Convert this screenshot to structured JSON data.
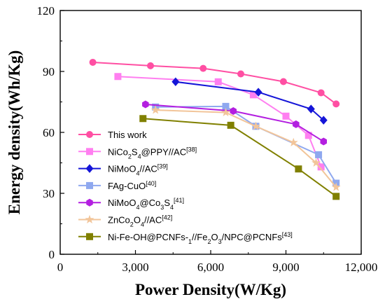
{
  "chart_data": {
    "type": "line",
    "xlabel": "Power Density(W/Kg)",
    "ylabel": "Energy density(Wh/Kg)",
    "xlim": [
      0,
      12000
    ],
    "ylim": [
      0,
      120
    ],
    "x_ticks": [
      "0",
      "3,000",
      "6,000",
      "9,000",
      "12,000"
    ],
    "y_ticks": [
      "0",
      "30",
      "60",
      "90",
      "120"
    ],
    "legend_position": "bottom-left",
    "series": [
      {
        "name": "This work",
        "color": "#ff4fa3",
        "marker": "circle",
        "x": [
          1300,
          3600,
          5700,
          7200,
          8900,
          10400,
          11000
        ],
        "y": [
          94.5,
          92.8,
          91.5,
          88.8,
          85.0,
          79.5,
          74.0
        ]
      },
      {
        "name": "NiCo2S4@PPY//AC",
        "ref": "[38]",
        "color": "#ff7ff0",
        "marker": "square",
        "x": [
          2300,
          6300,
          7700,
          9000,
          9900,
          10400
        ],
        "y": [
          87.5,
          84.9,
          78.5,
          68.0,
          58.5,
          43.0
        ]
      },
      {
        "name": "NiMoO4//AC",
        "ref": "[39]",
        "color": "#1515d8",
        "marker": "diamond",
        "x": [
          4600,
          7900,
          10000,
          10500
        ],
        "y": [
          84.9,
          79.8,
          71.5,
          66.0
        ]
      },
      {
        "name": "FAg-CuO",
        "ref": "[40]",
        "color": "#8fa8ef",
        "marker": "square",
        "x": [
          3800,
          6600,
          7800,
          10300,
          11000
        ],
        "y": [
          72.5,
          72.8,
          63.0,
          49.0,
          35.0
        ]
      },
      {
        "name": "NiMoO4@Co3S4",
        "ref": "[41]",
        "color": "#b31fe0",
        "marker": "hexagon",
        "x": [
          3400,
          6900,
          9400,
          10500
        ],
        "y": [
          73.8,
          70.5,
          64.0,
          55.5
        ]
      },
      {
        "name": "ZnCo2O4//AC",
        "ref": "[42]",
        "color": "#f2c59a",
        "marker": "star",
        "x": [
          3800,
          6600,
          7800,
          9300,
          10200,
          11000
        ],
        "y": [
          71.0,
          69.8,
          63.0,
          55.0,
          45.0,
          33.0
        ]
      },
      {
        "name": "Ni-Fe-OH@PCNFs-1//Fe2O3/NPC@PCNFs",
        "ref": "[43]",
        "color": "#808000",
        "marker": "square",
        "x": [
          3300,
          6800,
          9500,
          11000
        ],
        "y": [
          66.8,
          63.5,
          42.0,
          28.5
        ]
      }
    ]
  }
}
